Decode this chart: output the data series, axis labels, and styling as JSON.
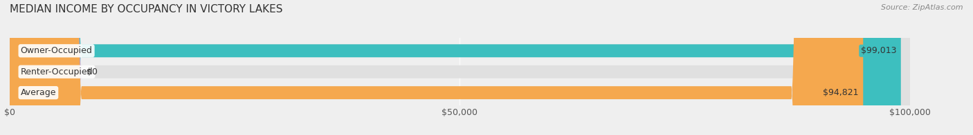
{
  "title": "MEDIAN INCOME BY OCCUPANCY IN VICTORY LAKES",
  "source": "Source: ZipAtlas.com",
  "categories": [
    "Owner-Occupied",
    "Renter-Occupied",
    "Average"
  ],
  "values": [
    99013,
    0,
    94821
  ],
  "bar_colors": [
    "#3dbfbf",
    "#b8a0cc",
    "#f5a84e"
  ],
  "value_labels": [
    "$99,013",
    "$0",
    "$94,821"
  ],
  "xmax": 100000,
  "xtick_labels": [
    "$0",
    "$50,000",
    "$100,000"
  ],
  "bg_color": "#efefef",
  "bar_bg_color": "#e0e0e0",
  "title_fontsize": 11,
  "label_fontsize": 9,
  "source_fontsize": 8
}
